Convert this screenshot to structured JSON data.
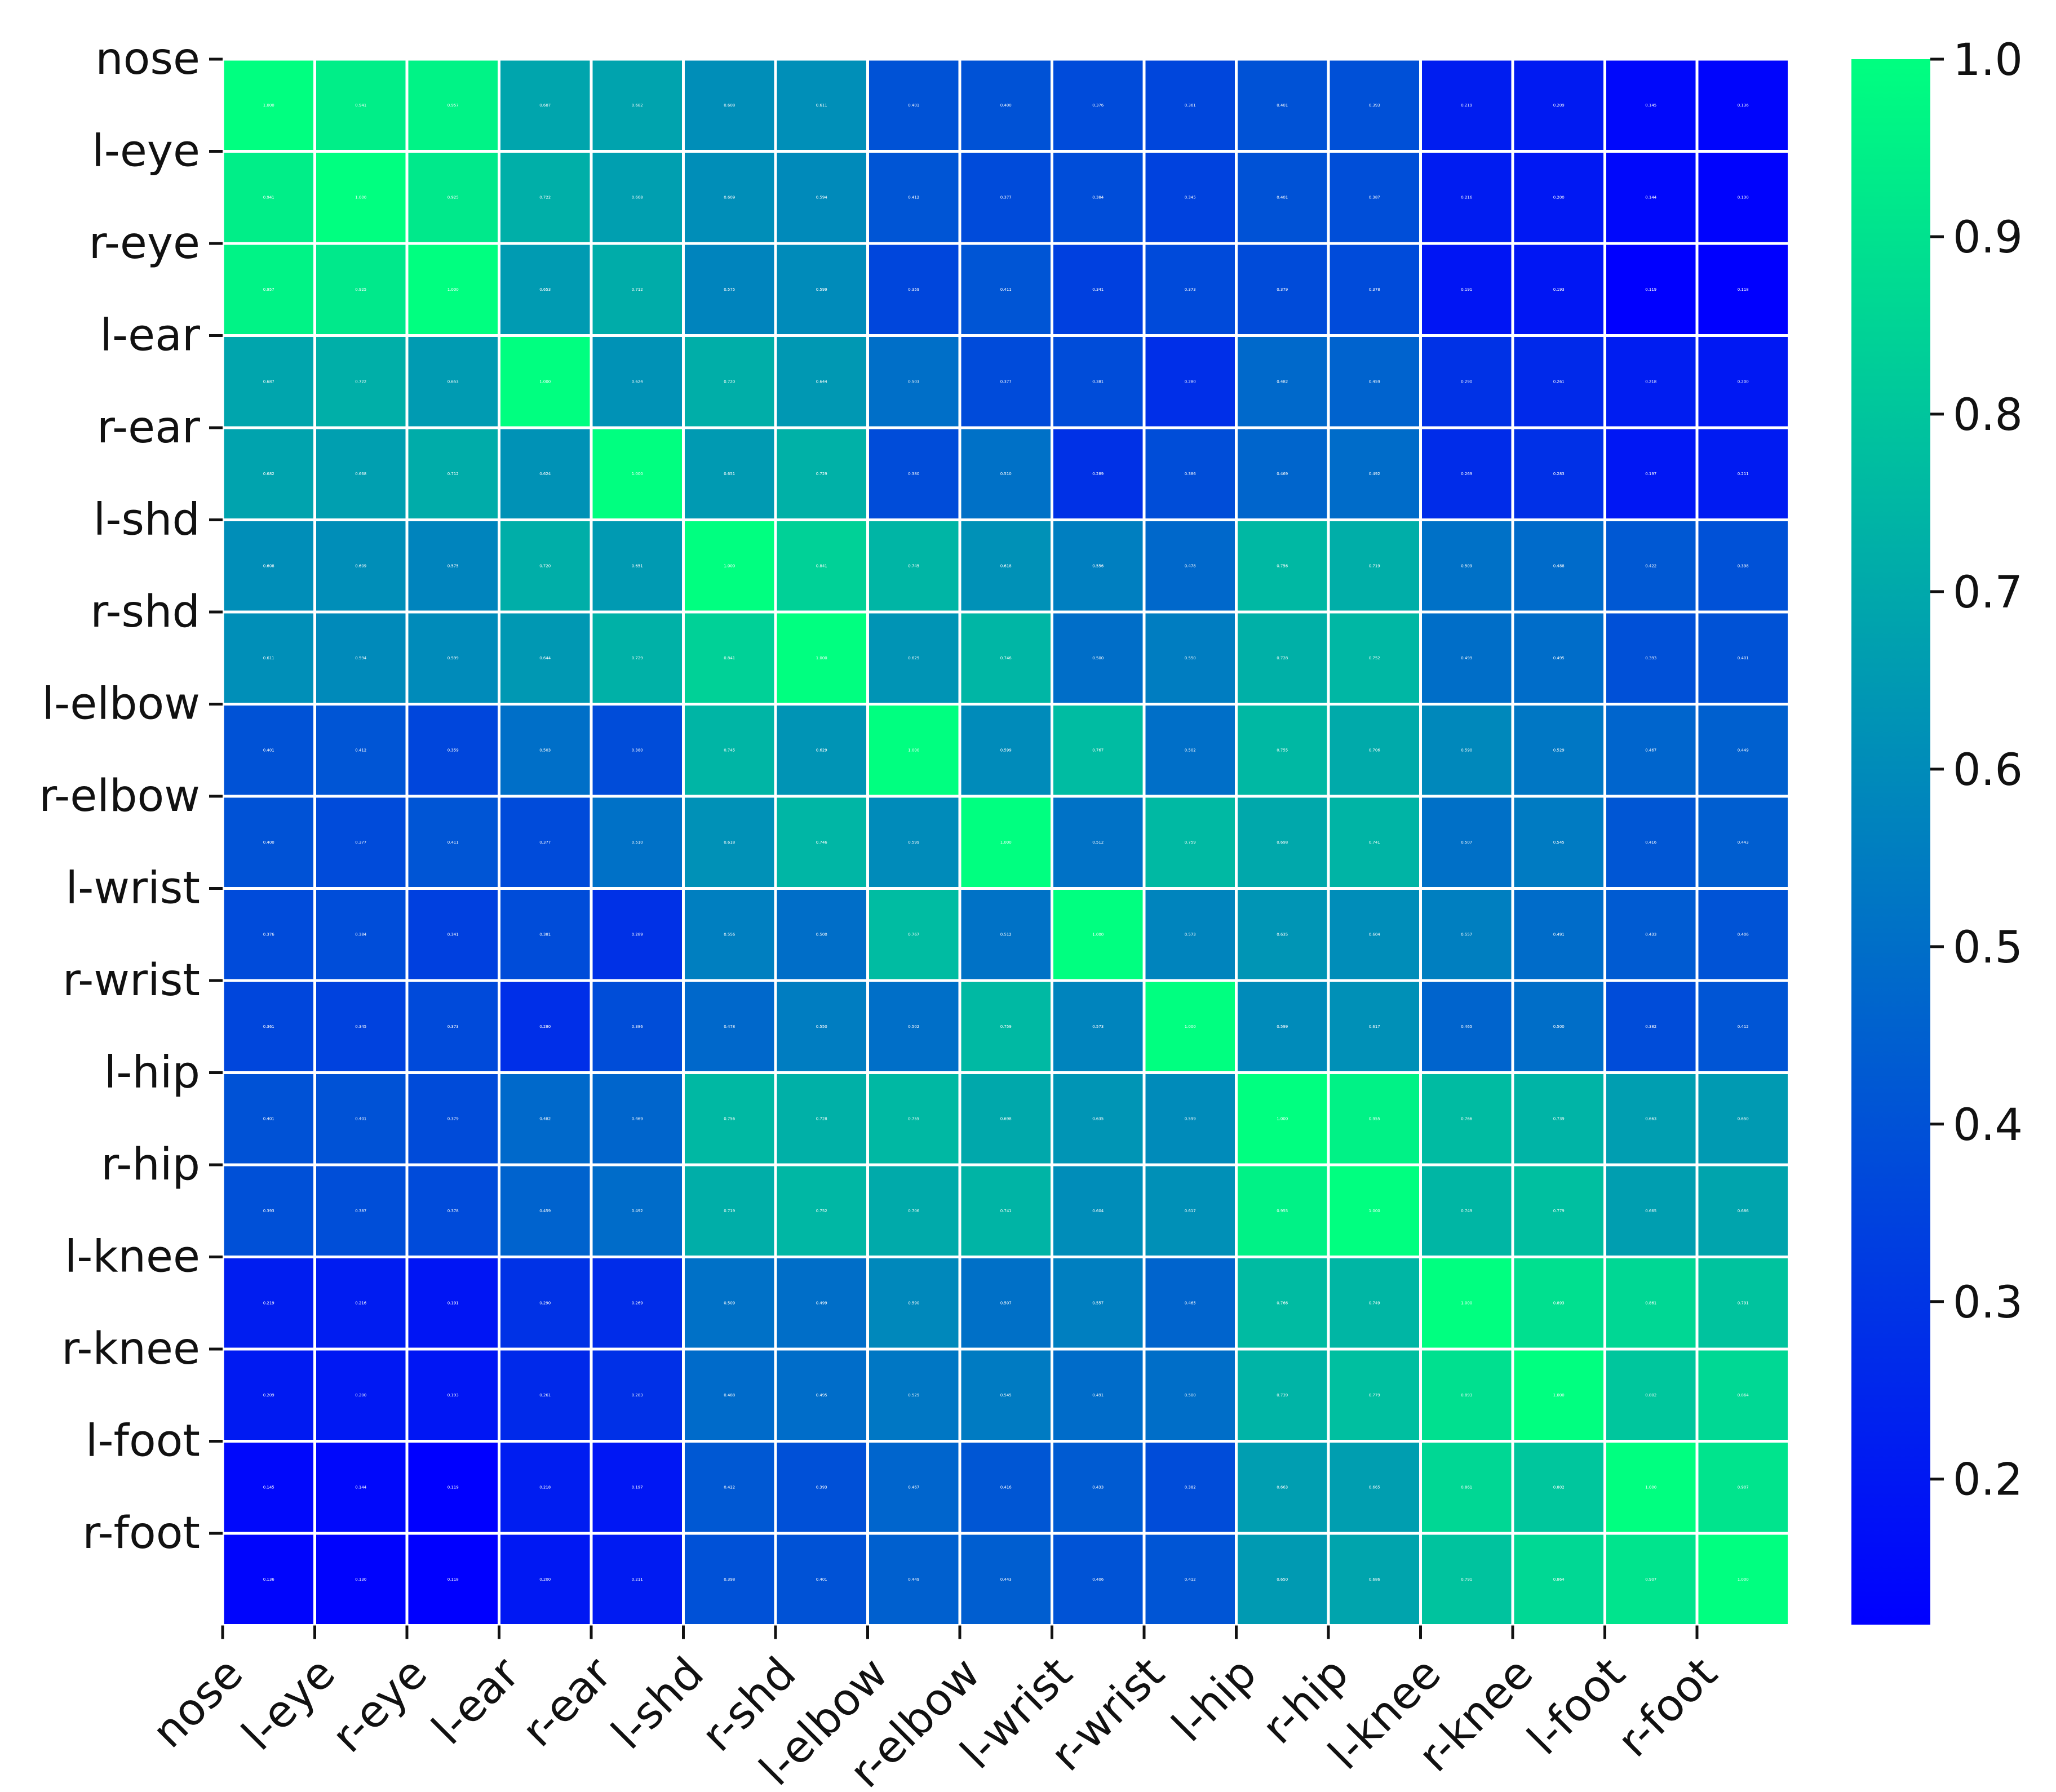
{
  "chart_data": {
    "type": "heatmap",
    "labels": [
      "nose",
      "l-eye",
      "r-eye",
      "l-ear",
      "r-ear",
      "l-shd",
      "r-shd",
      "l-elbow",
      "r-elbow",
      "l-wrist",
      "r-wrist",
      "l-hip",
      "r-hip",
      "l-knee",
      "r-knee",
      "l-foot",
      "r-foot"
    ],
    "matrix": [
      [
        1.0,
        0.941,
        0.957,
        0.687,
        0.682,
        0.608,
        0.611,
        0.401,
        0.4,
        0.376,
        0.361,
        0.401,
        0.393,
        0.219,
        0.209,
        0.145,
        0.136
      ],
      [
        0.941,
        1.0,
        0.925,
        0.722,
        0.668,
        0.609,
        0.594,
        0.412,
        0.377,
        0.384,
        0.345,
        0.401,
        0.387,
        0.216,
        0.2,
        0.144,
        0.13
      ],
      [
        0.957,
        0.925,
        1.0,
        0.653,
        0.712,
        0.575,
        0.599,
        0.359,
        0.411,
        0.341,
        0.373,
        0.379,
        0.378,
        0.191,
        0.193,
        0.119,
        0.118
      ],
      [
        0.687,
        0.722,
        0.653,
        1.0,
        0.624,
        0.72,
        0.644,
        0.503,
        0.377,
        0.381,
        0.28,
        0.482,
        0.459,
        0.29,
        0.261,
        0.218,
        0.2
      ],
      [
        0.682,
        0.668,
        0.712,
        0.624,
        1.0,
        0.651,
        0.729,
        0.38,
        0.51,
        0.289,
        0.386,
        0.469,
        0.492,
        0.269,
        0.283,
        0.197,
        0.211
      ],
      [
        0.608,
        0.609,
        0.575,
        0.72,
        0.651,
        1.0,
        0.841,
        0.745,
        0.618,
        0.556,
        0.478,
        0.756,
        0.719,
        0.509,
        0.488,
        0.422,
        0.398
      ],
      [
        0.611,
        0.594,
        0.599,
        0.644,
        0.729,
        0.841,
        1.0,
        0.629,
        0.746,
        0.5,
        0.55,
        0.728,
        0.752,
        0.499,
        0.495,
        0.393,
        0.401
      ],
      [
        0.401,
        0.412,
        0.359,
        0.503,
        0.38,
        0.745,
        0.629,
        1.0,
        0.599,
        0.767,
        0.502,
        0.755,
        0.706,
        0.59,
        0.529,
        0.467,
        0.449
      ],
      [
        0.4,
        0.377,
        0.411,
        0.377,
        0.51,
        0.618,
        0.746,
        0.599,
        1.0,
        0.512,
        0.759,
        0.698,
        0.741,
        0.507,
        0.545,
        0.416,
        0.443
      ],
      [
        0.376,
        0.384,
        0.341,
        0.381,
        0.289,
        0.556,
        0.5,
        0.767,
        0.512,
        1.0,
        0.573,
        0.635,
        0.604,
        0.557,
        0.491,
        0.433,
        0.406
      ],
      [
        0.361,
        0.345,
        0.373,
        0.28,
        0.386,
        0.478,
        0.55,
        0.502,
        0.759,
        0.573,
        1.0,
        0.599,
        0.617,
        0.465,
        0.5,
        0.382,
        0.412
      ],
      [
        0.401,
        0.401,
        0.379,
        0.482,
        0.469,
        0.756,
        0.728,
        0.755,
        0.698,
        0.635,
        0.599,
        1.0,
        0.955,
        0.766,
        0.739,
        0.663,
        0.65
      ],
      [
        0.393,
        0.387,
        0.378,
        0.459,
        0.492,
        0.719,
        0.752,
        0.706,
        0.741,
        0.604,
        0.617,
        0.955,
        1.0,
        0.749,
        0.779,
        0.665,
        0.686
      ],
      [
        0.219,
        0.216,
        0.191,
        0.29,
        0.269,
        0.509,
        0.499,
        0.59,
        0.507,
        0.557,
        0.465,
        0.766,
        0.749,
        1.0,
        0.893,
        0.861,
        0.791
      ],
      [
        0.209,
        0.2,
        0.193,
        0.261,
        0.283,
        0.488,
        0.495,
        0.529,
        0.545,
        0.491,
        0.5,
        0.739,
        0.779,
        0.893,
        1.0,
        0.802,
        0.864
      ],
      [
        0.145,
        0.144,
        0.119,
        0.218,
        0.197,
        0.422,
        0.393,
        0.467,
        0.416,
        0.433,
        0.382,
        0.663,
        0.665,
        0.861,
        0.802,
        1.0,
        0.907
      ],
      [
        0.136,
        0.13,
        0.118,
        0.2,
        0.211,
        0.398,
        0.401,
        0.449,
        0.443,
        0.406,
        0.412,
        0.65,
        0.686,
        0.791,
        0.864,
        0.907,
        1.0
      ]
    ],
    "colormap": "winter",
    "color_min": "#0000ff",
    "color_max": "#00ff80",
    "vmin": 0.118,
    "vmax": 1.0,
    "colorbar_ticks": [
      "1.0",
      "0.9",
      "0.8",
      "0.7",
      "0.6",
      "0.5",
      "0.4",
      "0.3",
      "0.2"
    ],
    "annotations": true,
    "grid": false,
    "legend": "colorbar-right"
  }
}
